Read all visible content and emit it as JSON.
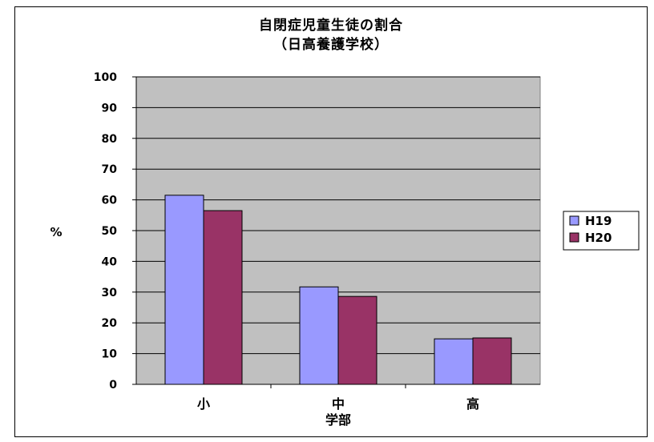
{
  "chart_data": {
    "type": "bar",
    "title": "自閉症児童生徒の割合",
    "subtitle": "（日高養護学校）",
    "xlabel": "学部",
    "ylabel": "%",
    "categories": [
      "小",
      "中",
      "高"
    ],
    "series": [
      {
        "name": "H19",
        "values": [
          61.5,
          31.7,
          14.8
        ],
        "color": "#9999ff"
      },
      {
        "name": "H20",
        "values": [
          56.5,
          28.6,
          15.1
        ],
        "color": "#993366"
      }
    ],
    "ylim": [
      0,
      100
    ],
    "yticks": [
      0,
      10,
      20,
      30,
      40,
      50,
      60,
      70,
      80,
      90,
      100
    ],
    "grid": true,
    "legend": "right",
    "plot_background": "#c0c0c0"
  }
}
